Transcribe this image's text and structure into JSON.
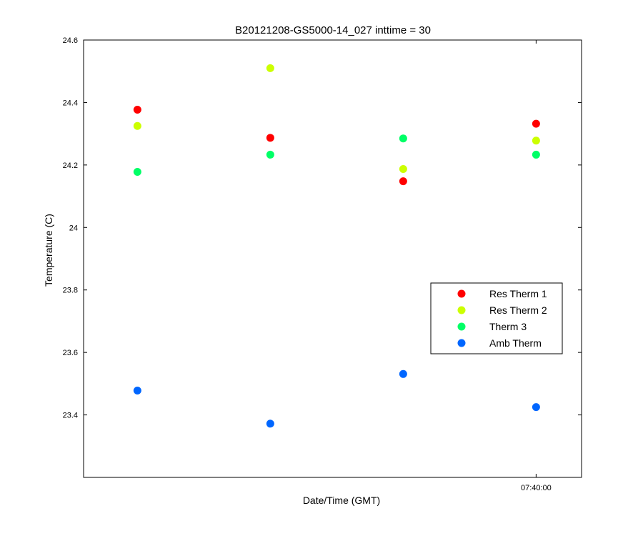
{
  "chart_data": {
    "type": "scatter",
    "title": "B20121208-GS5000-14_027 inttime = 30",
    "xlabel": "Date/Time (GMT)",
    "ylabel": "Temperature (C)",
    "ylim": [
      23.2,
      24.6
    ],
    "yticks": [
      "23.4",
      "23.6",
      "23.8",
      "24",
      "24.2",
      "24.4",
      "24.6"
    ],
    "xtick_labels": [
      "07:40:00"
    ],
    "x": [
      "07:38:30",
      "07:39:00",
      "07:39:30",
      "07:40:00"
    ],
    "grid": false,
    "legend_position": "right",
    "series": [
      {
        "name": "Res Therm 1",
        "color": "#ff0000",
        "values": [
          24.377,
          24.287,
          24.148,
          24.332
        ]
      },
      {
        "name": "Res Therm 2",
        "color": "#ccff00",
        "values": [
          24.325,
          24.51,
          24.187,
          24.278
        ]
      },
      {
        "name": "Therm 3",
        "color": "#00ff66",
        "values": [
          24.178,
          24.233,
          24.285,
          24.233
        ]
      },
      {
        "name": "Amb Therm",
        "color": "#0066ff",
        "values": [
          23.478,
          23.372,
          23.531,
          23.425
        ]
      }
    ]
  }
}
